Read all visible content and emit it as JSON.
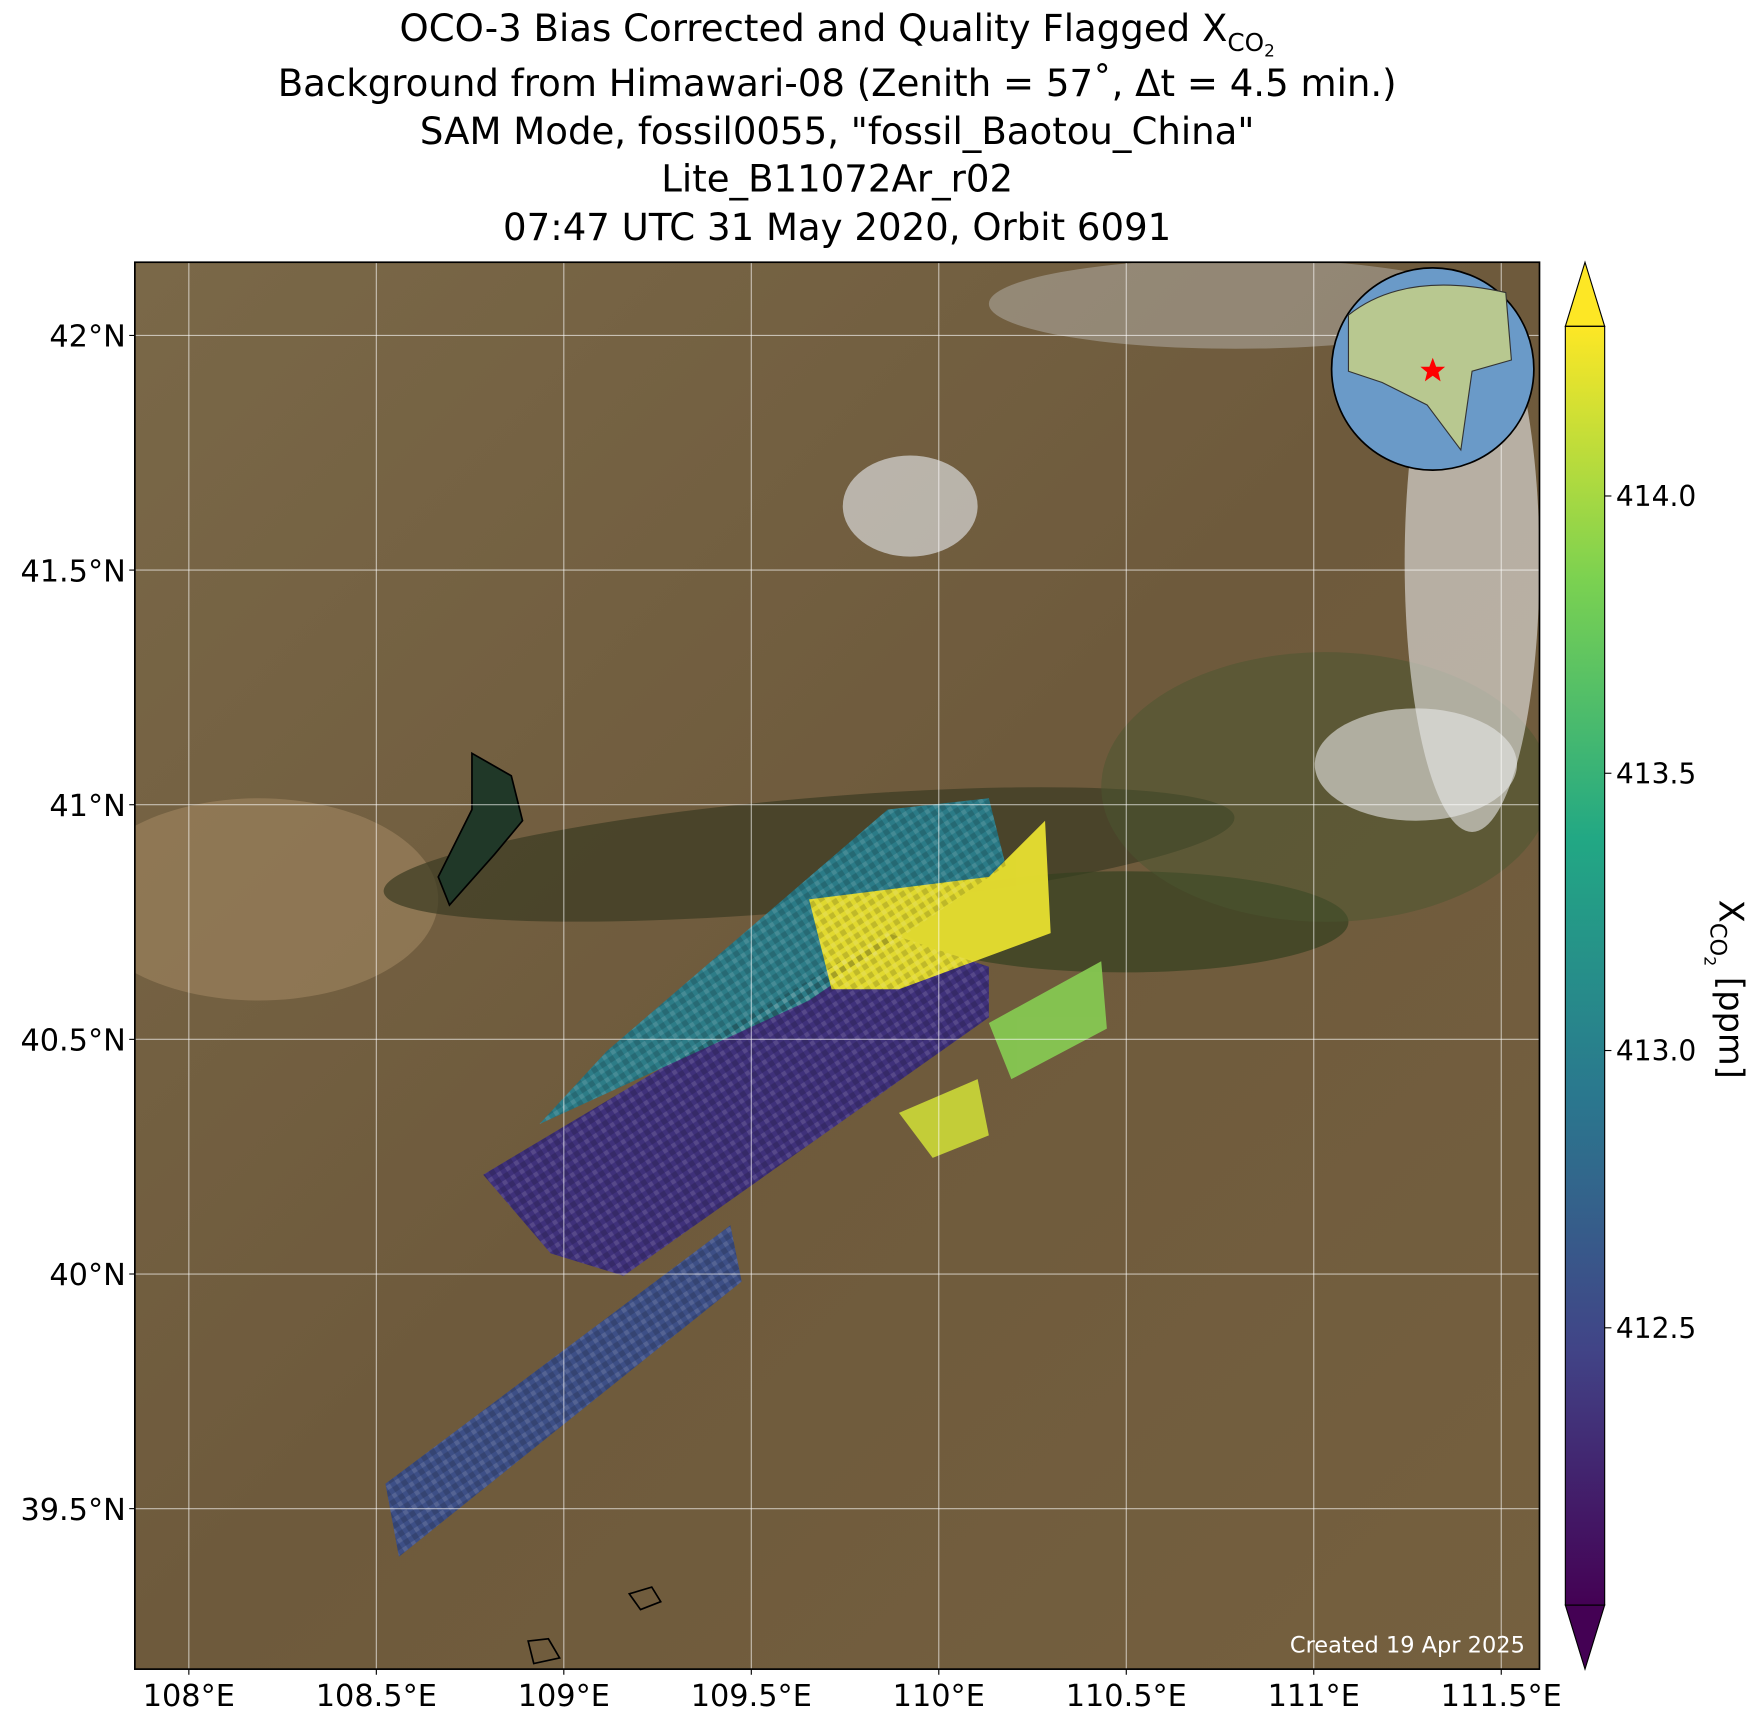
{
  "chart_data": {
    "type": "map",
    "title": {
      "line1": "OCO-3 Bias Corrected and Quality Flagged X",
      "line1_sub": "CO",
      "line1_subsub": "2",
      "lines": [
        "Background from Himawari-08 (Zenith = 57˚, Δt =  4.5 min.)",
        "SAM Mode, fossil0055, \"fossil_Baotou_China\"",
        "Lite_B11072Ar_r02",
        "07:47 UTC 31 May 2020, Orbit 6091"
      ]
    },
    "xlim": [
      107.856,
      111.602
    ],
    "ylim": [
      39.158,
      42.156
    ],
    "xticks": [
      {
        "value": 108,
        "label": "108°E"
      },
      {
        "value": 108.5,
        "label": "108.5°E"
      },
      {
        "value": 109,
        "label": "109°E"
      },
      {
        "value": 109.5,
        "label": "109.5°E"
      },
      {
        "value": 110,
        "label": "110°E"
      },
      {
        "value": 110.5,
        "label": "110.5°E"
      },
      {
        "value": 111,
        "label": "111°E"
      },
      {
        "value": 111.5,
        "label": "111.5°E"
      }
    ],
    "yticks": [
      {
        "value": 39.5,
        "label": "39.5°N"
      },
      {
        "value": 40,
        "label": "40°N"
      },
      {
        "value": 40.5,
        "label": "40.5°N"
      },
      {
        "value": 41,
        "label": "41°N"
      },
      {
        "value": 41.5,
        "label": "41.5°N"
      },
      {
        "value": 42,
        "label": "42°N"
      }
    ],
    "grid": true,
    "colorbar": {
      "label": "X",
      "label_sub": "CO",
      "label_subsub": "2",
      "label_unit": " [ppm]",
      "clim": [
        412.0,
        414.306
      ],
      "ticks": [
        {
          "value": 412.5,
          "label": "412.5"
        },
        {
          "value": 413,
          "label": "413.0"
        },
        {
          "value": 413.5,
          "label": "413.5"
        },
        {
          "value": 414,
          "label": "414.0"
        }
      ]
    },
    "annotation": "Created 19 Apr 2025"
  }
}
